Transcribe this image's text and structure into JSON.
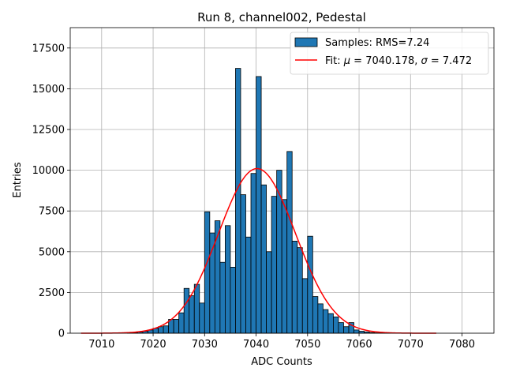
{
  "chart_data": {
    "type": "bar",
    "title": "Run 8, channel002, Pedestal",
    "xlabel": "ADC Counts",
    "ylabel": "Entries",
    "xlim": [
      7003.9,
      7086.2
    ],
    "ylim": [
      0,
      18750
    ],
    "xticks": [
      7010,
      7020,
      7030,
      7040,
      7050,
      7060,
      7070,
      7080
    ],
    "yticks": [
      0,
      2500,
      5000,
      7500,
      10000,
      12500,
      15000,
      17500
    ],
    "grid": true,
    "legend_position": "top-right",
    "histogram": {
      "name": "Samples: RMS=7.24",
      "color": "#1f77b4",
      "bin_width": 1,
      "bin_starts": [
        7015,
        7016,
        7017,
        7018,
        7019,
        7020,
        7021,
        7022,
        7023,
        7024,
        7025,
        7026,
        7027,
        7028,
        7029,
        7030,
        7031,
        7032,
        7033,
        7034,
        7035,
        7036,
        7037,
        7038,
        7039,
        7040,
        7041,
        7042,
        7043,
        7044,
        7045,
        7046,
        7047,
        7048,
        7049,
        7050,
        7051,
        7052,
        7053,
        7054,
        7055,
        7056,
        7057,
        7058,
        7059,
        7060,
        7061,
        7062,
        7063,
        7064,
        7065
      ],
      "counts": [
        20,
        40,
        70,
        120,
        200,
        300,
        400,
        450,
        850,
        850,
        1250,
        2750,
        2300,
        3000,
        1850,
        7450,
        6150,
        6900,
        4350,
        6600,
        4050,
        16250,
        8500,
        5900,
        9800,
        15750,
        9100,
        5000,
        8400,
        10000,
        8200,
        11150,
        5650,
        5250,
        3350,
        5950,
        2250,
        1800,
        1450,
        1200,
        1000,
        650,
        400,
        650,
        200,
        120,
        80,
        40,
        20,
        10,
        5
      ]
    },
    "fit": {
      "name": "Fit: μ = 7040.178, σ = 7.472",
      "color": "#ff0000",
      "mu": 7040.178,
      "sigma": 7.472,
      "amplitude": 10100,
      "x_range": [
        7006,
        7075
      ]
    }
  },
  "legend": {
    "samples_label": "Samples: RMS=7.24",
    "fit_label_prefix": "Fit: ",
    "fit_mu_symbol": "μ",
    "fit_mu_value": " = 7040.178, ",
    "fit_sigma_symbol": "σ",
    "fit_sigma_value": " = 7.472"
  }
}
